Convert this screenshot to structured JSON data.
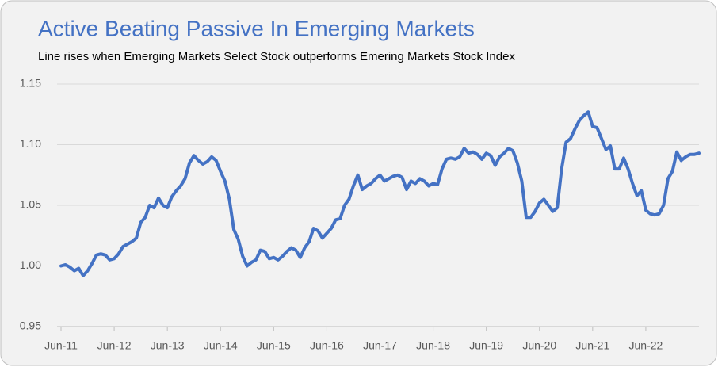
{
  "chart_data": {
    "type": "line",
    "title": "Active Beating Passive In Emerging Markets",
    "subtitle": "Line rises when Emerging Markets Select Stock outperforms Emering Markets Stock Index",
    "categories": [
      "Jun-11",
      null,
      null,
      null,
      null,
      null,
      null,
      null,
      null,
      null,
      null,
      null,
      "Jun-12",
      null,
      null,
      null,
      null,
      null,
      null,
      null,
      null,
      null,
      null,
      null,
      "Jun-13",
      null,
      null,
      null,
      null,
      null,
      null,
      null,
      null,
      null,
      null,
      null,
      "Jun-14",
      null,
      null,
      null,
      null,
      null,
      null,
      null,
      null,
      null,
      null,
      null,
      "Jun-15",
      null,
      null,
      null,
      null,
      null,
      null,
      null,
      null,
      null,
      null,
      null,
      "Jun-16",
      null,
      null,
      null,
      null,
      null,
      null,
      null,
      null,
      null,
      null,
      null,
      "Jun-17",
      null,
      null,
      null,
      null,
      null,
      null,
      null,
      null,
      null,
      null,
      null,
      "Jun-18",
      null,
      null,
      null,
      null,
      null,
      null,
      null,
      null,
      null,
      null,
      null,
      "Jun-19",
      null,
      null,
      null,
      null,
      null,
      null,
      null,
      null,
      null,
      null,
      null,
      "Jun-20",
      null,
      null,
      null,
      null,
      null,
      null,
      null,
      null,
      null,
      null,
      null,
      "Jun-21",
      null,
      null,
      null,
      null,
      null,
      null,
      null,
      null,
      null,
      null,
      null,
      "Jun-22",
      null,
      null,
      null,
      null,
      null,
      null,
      null,
      null,
      null,
      null,
      null,
      null
    ],
    "series": [
      {
        "color": "#4472c4",
        "values": [
          1.0,
          1.001,
          0.999,
          0.996,
          0.998,
          0.992,
          0.996,
          1.002,
          1.009,
          1.01,
          1.009,
          1.005,
          1.006,
          1.01,
          1.016,
          1.018,
          1.02,
          1.023,
          1.036,
          1.04,
          1.05,
          1.048,
          1.056,
          1.05,
          1.048,
          1.057,
          1.062,
          1.066,
          1.072,
          1.085,
          1.091,
          1.087,
          1.084,
          1.086,
          1.09,
          1.087,
          1.078,
          1.07,
          1.055,
          1.03,
          1.022,
          1.008,
          1.0,
          1.003,
          1.005,
          1.013,
          1.012,
          1.006,
          1.007,
          1.005,
          1.008,
          1.012,
          1.015,
          1.013,
          1.007,
          1.015,
          1.02,
          1.031,
          1.029,
          1.023,
          1.027,
          1.031,
          1.038,
          1.039,
          1.05,
          1.055,
          1.066,
          1.075,
          1.063,
          1.066,
          1.068,
          1.072,
          1.075,
          1.07,
          1.072,
          1.074,
          1.075,
          1.073,
          1.063,
          1.07,
          1.068,
          1.072,
          1.07,
          1.066,
          1.068,
          1.067,
          1.08,
          1.088,
          1.089,
          1.088,
          1.09,
          1.097,
          1.093,
          1.094,
          1.092,
          1.088,
          1.093,
          1.091,
          1.083,
          1.09,
          1.093,
          1.097,
          1.095,
          1.085,
          1.07,
          1.04,
          1.04,
          1.045,
          1.052,
          1.055,
          1.05,
          1.045,
          1.048,
          1.08,
          1.102,
          1.105,
          1.113,
          1.12,
          1.124,
          1.127,
          1.115,
          1.114,
          1.105,
          1.096,
          1.099,
          1.08,
          1.08,
          1.089,
          1.08,
          1.068,
          1.058,
          1.062,
          1.046,
          1.043,
          1.042,
          1.043,
          1.05,
          1.072,
          1.078,
          1.094,
          1.087,
          1.09,
          1.092,
          1.092,
          1.093
        ]
      }
    ],
    "ylim": [
      0.95,
      1.15
    ],
    "yticks": [
      0.95,
      {
        "value": 1,
        "label": "1.00"
      },
      1.05,
      {
        "value": 1.1,
        "label": "1.10"
      },
      1.15
    ],
    "grid": true
  }
}
